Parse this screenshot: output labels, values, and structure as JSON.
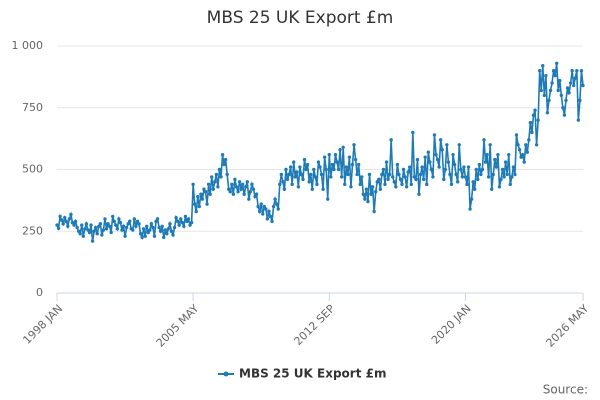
{
  "chart_data": {
    "type": "line",
    "title": "MBS 25 UK Export £m",
    "source": "Source:",
    "categories": [
      "1998 JAN",
      null,
      null,
      null,
      null,
      null,
      null,
      null,
      null,
      null,
      null,
      null,
      null,
      null,
      null,
      null,
      null,
      null,
      null,
      null,
      null,
      null,
      null,
      null,
      null,
      null,
      null,
      null,
      null,
      null,
      null,
      null,
      null,
      null,
      null,
      null,
      null,
      null,
      null,
      null,
      null,
      null,
      null,
      null,
      null,
      null,
      null,
      null,
      null,
      null,
      null,
      null,
      null,
      null,
      null,
      null,
      null,
      null,
      null,
      null,
      null,
      null,
      null,
      null,
      null,
      null,
      null,
      null,
      null,
      null,
      null,
      null,
      null,
      null,
      null,
      null,
      null,
      null,
      null,
      null,
      null,
      null,
      null,
      null,
      null,
      null,
      null,
      null,
      "2005 MAY",
      null,
      null,
      null,
      null,
      null,
      null,
      null,
      null,
      null,
      null,
      null,
      null,
      null,
      null,
      null,
      null,
      null,
      null,
      null,
      null,
      null,
      null,
      null,
      null,
      null,
      null,
      null,
      null,
      null,
      null,
      null,
      null,
      null,
      null,
      null,
      null,
      null,
      null,
      null,
      null,
      null,
      null,
      null,
      null,
      null,
      null,
      null,
      null,
      null,
      null,
      null,
      null,
      null,
      null,
      null,
      null,
      null,
      null,
      null,
      null,
      null,
      null,
      null,
      null,
      null,
      null,
      null,
      null,
      null,
      null,
      null,
      null,
      null,
      null,
      null,
      null,
      null,
      null,
      null,
      null,
      null,
      null,
      null,
      null,
      null,
      null,
      null,
      "2012 SEP",
      null,
      null,
      null,
      null,
      null,
      null,
      null,
      null,
      null,
      null,
      null,
      null,
      null,
      null,
      null,
      null,
      null,
      null,
      null,
      null,
      null,
      null,
      null,
      null,
      null,
      null,
      null,
      null,
      null,
      null,
      null,
      null,
      null,
      null,
      null,
      null,
      null,
      null,
      null,
      null,
      null,
      null,
      null,
      null,
      null,
      null,
      null,
      null,
      null,
      null,
      null,
      null,
      null,
      null,
      null,
      null,
      null,
      null,
      null,
      null,
      null,
      null,
      null,
      null,
      null,
      null,
      null,
      null,
      null,
      null,
      null,
      null,
      null,
      null,
      null,
      null,
      null,
      null,
      null,
      null,
      null,
      null,
      null,
      null,
      null,
      null,
      null,
      "2020 JAN",
      null,
      null,
      null,
      null,
      null,
      null,
      null,
      null,
      null,
      null,
      null,
      null,
      null,
      null,
      null,
      null,
      null,
      null,
      null,
      null,
      null,
      null,
      null,
      null,
      null,
      null,
      null,
      null,
      null,
      null,
      null,
      null,
      null,
      null,
      null,
      null,
      null,
      null,
      null,
      null,
      null,
      null,
      null,
      null,
      null,
      null,
      null,
      null,
      null,
      null,
      null,
      null,
      null,
      null,
      null,
      null,
      null,
      null,
      null,
      null,
      null,
      null,
      null,
      null,
      null,
      null,
      null,
      null,
      null,
      null,
      null,
      null,
      null,
      null,
      null,
      "2026 MAY"
    ],
    "series": [
      {
        "name": "MBS 25 UK Export £m",
        "color": "#1f7bb6",
        "values": [
          275,
          262,
          310,
          295,
          280,
          305,
          290,
          270,
          300,
          318,
          285,
          275,
          290,
          265,
          250,
          240,
          275,
          230,
          260,
          280,
          255,
          245,
          275,
          210,
          250,
          265,
          240,
          270,
          280,
          235,
          255,
          300,
          260,
          280,
          270,
          245,
          310,
          290,
          275,
          260,
          300,
          285,
          255,
          270,
          230,
          265,
          280,
          290,
          260,
          255,
          300,
          270,
          290,
          280,
          240,
          225,
          260,
          230,
          270,
          245,
          255,
          280,
          265,
          230,
          290,
          300,
          265,
          250,
          270,
          225,
          255,
          240,
          260,
          280,
          250,
          235,
          265,
          305,
          290,
          275,
          300,
          285,
          270,
          310,
          290,
          300,
          275,
          285,
          440,
          360,
          330,
          390,
          350,
          400,
          380,
          420,
          410,
          360,
          440,
          400,
          470,
          420,
          450,
          480,
          430,
          500,
          470,
          560,
          520,
          540,
          480,
          420,
          410,
          440,
          400,
          460,
          430,
          410,
          450,
          420,
          440,
          400,
          430,
          450,
          380,
          410,
          440,
          420,
          390,
          400,
          350,
          330,
          360,
          320,
          350,
          340,
          300,
          330,
          310,
          290,
          350,
          380,
          360,
          340,
          440,
          480,
          450,
          420,
          500,
          460,
          480,
          510,
          440,
          530,
          470,
          490,
          430,
          510,
          480,
          460,
          540,
          500,
          520,
          450,
          480,
          420,
          500,
          470,
          440,
          530,
          510,
          480,
          420,
          550,
          500,
          380,
          560,
          470,
          520,
          500,
          560,
          530,
          500,
          580,
          470,
          590,
          440,
          510,
          480,
          550,
          430,
          520,
          600,
          540,
          480,
          520,
          440,
          470,
          400,
          380,
          420,
          370,
          480,
          400,
          430,
          330,
          410,
          450,
          460,
          420,
          480,
          500,
          440,
          530,
          460,
          480,
          620,
          470,
          450,
          430,
          520,
          480,
          460,
          440,
          500,
          470,
          430,
          490,
          510,
          440,
          650,
          470,
          460,
          540,
          400,
          480,
          510,
          460,
          550,
          440,
          570,
          530,
          500,
          470,
          640,
          560,
          540,
          510,
          620,
          580,
          460,
          500,
          600,
          530,
          480,
          440,
          560,
          520,
          480,
          450,
          600,
          500,
          470,
          510,
          470,
          440,
          510,
          340,
          380,
          450,
          420,
          500,
          460,
          520,
          480,
          500,
          620,
          530,
          560,
          470,
          600,
          420,
          480,
          540,
          510,
          560,
          430,
          460,
          500,
          470,
          530,
          480,
          560,
          440,
          470,
          510,
          480,
          640,
          600,
          580,
          550,
          560,
          530,
          600,
          570,
          620,
          690,
          650,
          720,
          740,
          600,
          700,
          900,
          820,
          920,
          800,
          880,
          730,
          780,
          820,
          850,
          900,
          880,
          930,
          820,
          860,
          800,
          750,
          720,
          780,
          830,
          810,
          850,
          900,
          840,
          870,
          900,
          700,
          780,
          900,
          840
        ]
      }
    ],
    "ylim": [
      0,
      1000
    ],
    "yticks": [
      0,
      250,
      500,
      750,
      {
        "value": 1000,
        "label": "1 000"
      }
    ],
    "grid": true,
    "legend": "bottom"
  }
}
